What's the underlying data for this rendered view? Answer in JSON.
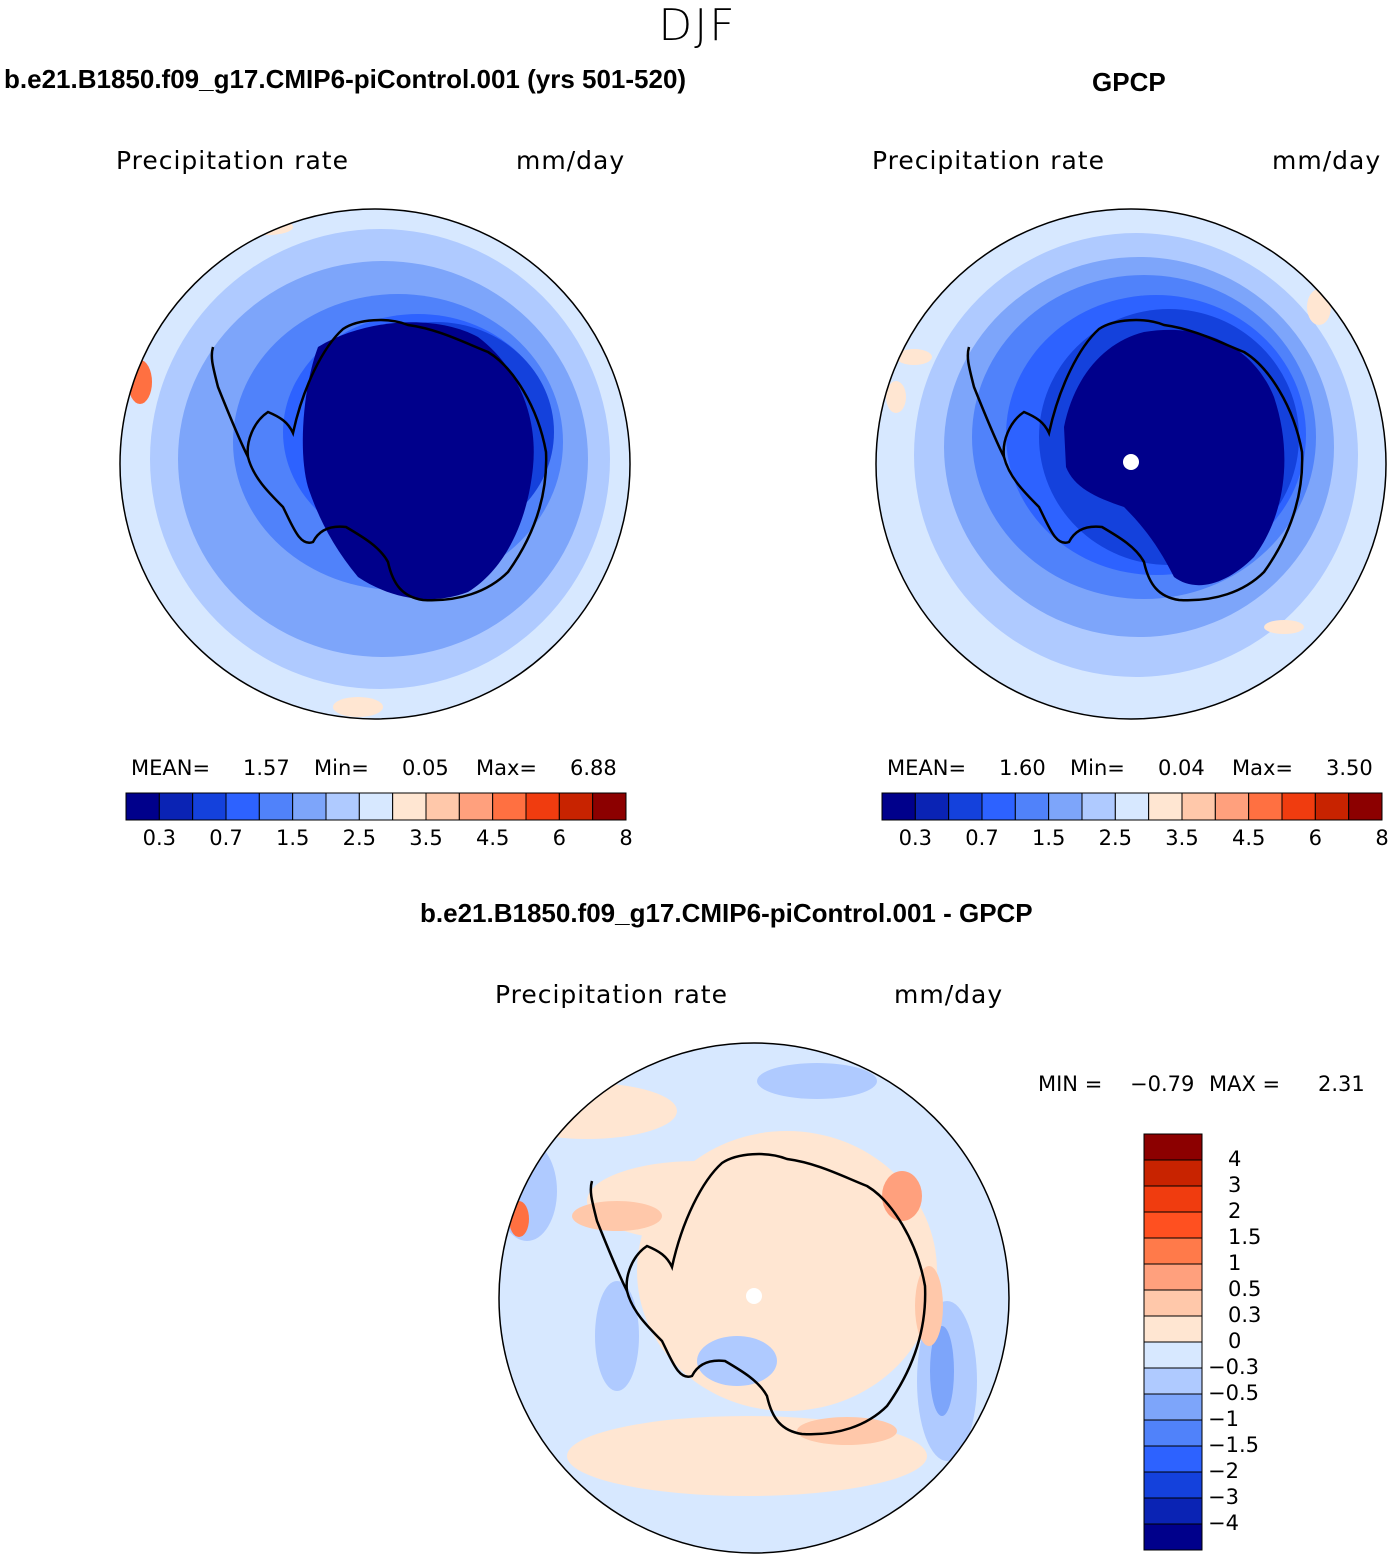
{
  "figure": {
    "season": "DJF",
    "colors": {
      "land_outline": "#000000",
      "missing": "#ffffff"
    }
  },
  "panels": [
    {
      "title": "b.e21.B1850.f09_g17.CMIP6-piControl.001 (yrs 501-520)",
      "variable": "Precipitation rate",
      "units": "mm/day",
      "stats": {
        "mean_label": "MEAN=",
        "mean": "1.57",
        "min_label": "Min=",
        "min": "0.05",
        "max_label": "Max=",
        "max": "6.88"
      }
    },
    {
      "title": "GPCP",
      "variable": "Precipitation rate",
      "units": "mm/day",
      "stats": {
        "mean_label": "MEAN=",
        "mean": "1.60",
        "min_label": "Min=",
        "min": "0.04",
        "max_label": "Max=",
        "max": "3.50"
      }
    },
    {
      "title": "b.e21.B1850.f09_g17.CMIP6-piControl.001 - GPCP",
      "variable": "Precipitation rate",
      "units": "mm/day",
      "stats": {
        "min_label": "MIN =",
        "min": "−0.79",
        "max_label": "MAX =",
        "max": "2.31"
      }
    }
  ],
  "colorbar_abs": {
    "ticks": [
      "0.3",
      "0.7",
      "1.5",
      "2.5",
      "3.5",
      "4.5",
      "6",
      "8"
    ],
    "colors": [
      "#00008b",
      "#0a23b4",
      "#1441dc",
      "#2d62ff",
      "#5082fa",
      "#7da5fa",
      "#afcaff",
      "#d7e8ff",
      "#ffe6d2",
      "#ffc8aa",
      "#ffa07d",
      "#ff7041",
      "#f03c0f",
      "#c82300",
      "#8c0000"
    ]
  },
  "colorbar_diff": {
    "ticks": [
      "4",
      "3",
      "2",
      "1.5",
      "1",
      "0.5",
      "0.3",
      "0",
      "−0.3",
      "−0.5",
      "−1",
      "−1.5",
      "−2",
      "−3",
      "−4"
    ],
    "colors": [
      "#8c0000",
      "#c82300",
      "#f03c0f",
      "#ff5020",
      "#ff7a4a",
      "#ffa07d",
      "#ffc8aa",
      "#ffe6d2",
      "#d7e8ff",
      "#afcaff",
      "#7da5fa",
      "#5082fa",
      "#2d62ff",
      "#1441dc",
      "#0a23b4",
      "#00008b"
    ]
  }
}
